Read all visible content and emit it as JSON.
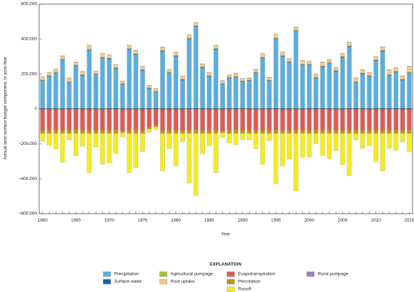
{
  "chart_data": {
    "type": "stacked-bar",
    "y_label": "Annual land-surface budget component, in acre-feet",
    "x_label": "Year",
    "legend_title": "EXPLANATION",
    "ylim": [
      -600000,
      600000
    ],
    "yticks": [
      {
        "value": -600000,
        "label": "−600,000"
      },
      {
        "value": -400000,
        "label": "−400,000"
      },
      {
        "value": -200000,
        "label": "−200,000"
      },
      0,
      {
        "value": 200000,
        "label": "200,000"
      },
      {
        "value": 400000,
        "label": "400,000"
      },
      {
        "value": 600000,
        "label": "600,000"
      }
    ],
    "categories": [
      "1960",
      null,
      null,
      null,
      null,
      "1965",
      null,
      null,
      null,
      null,
      "1970",
      null,
      null,
      null,
      null,
      "1975",
      null,
      null,
      null,
      null,
      "1980",
      null,
      null,
      null,
      null,
      "1985",
      null,
      null,
      null,
      null,
      "1990",
      null,
      null,
      null,
      null,
      "1995",
      null,
      null,
      null,
      null,
      "2000",
      null,
      null,
      null,
      null,
      "2005",
      null,
      null,
      null,
      null,
      "2010",
      null,
      null,
      null,
      null,
      "2015"
    ],
    "series": [
      {
        "name": "Precipitation",
        "color": "#5aaee0",
        "values": [
          160000,
          185000,
          205000,
          280000,
          150000,
          245000,
          190000,
          335000,
          195000,
          290000,
          285000,
          230000,
          140000,
          340000,
          310000,
          220000,
          115000,
          95000,
          330000,
          205000,
          300000,
          165000,
          400000,
          470000,
          235000,
          185000,
          340000,
          140000,
          175000,
          180000,
          155000,
          160000,
          205000,
          290000,
          160000,
          400000,
          300000,
          265000,
          445000,
          250000,
          250000,
          175000,
          240000,
          260000,
          215000,
          295000,
          355000,
          150000,
          200000,
          185000,
          275000,
          330000,
          190000,
          210000,
          165000,
          205000
        ]
      },
      {
        "name": "Surface water",
        "color": "#1f5fa8",
        "values": [
          3000,
          3000,
          3000,
          3000,
          3000,
          3000,
          3000,
          3000,
          3000,
          3000,
          3000,
          3000,
          3000,
          3000,
          3000,
          3000,
          3000,
          3000,
          3000,
          3000,
          3000,
          3000,
          3000,
          3000,
          3000,
          3000,
          3000,
          3000,
          3000,
          3000,
          3000,
          3000,
          3000,
          3000,
          3000,
          3000,
          3000,
          3000,
          3000,
          3000,
          3000,
          3000,
          3000,
          3000,
          3000,
          3000,
          3000,
          3000,
          3000,
          3000,
          3000,
          3000,
          3000,
          3000,
          3000,
          3000
        ]
      },
      {
        "name": "Agricultural pumpage",
        "color": "#a8c63a",
        "values": [
          3000,
          3000,
          3000,
          3000,
          3000,
          3000,
          3000,
          3000,
          3000,
          3000,
          3000,
          3000,
          3000,
          3000,
          3000,
          3000,
          3000,
          3000,
          3000,
          3000,
          3000,
          3000,
          3000,
          3000,
          3000,
          3000,
          3000,
          3000,
          3000,
          3000,
          3000,
          3000,
          3000,
          3000,
          3000,
          3000,
          3000,
          3000,
          3000,
          3000,
          3000,
          3000,
          3000,
          3000,
          3000,
          3000,
          3000,
          3000,
          3000,
          3000,
          3000,
          3000,
          3000,
          3000,
          3000,
          3000
        ]
      },
      {
        "name": "Root uptake",
        "color": "#f5c98a",
        "values": [
          18000,
          18000,
          18000,
          18000,
          21000,
          16000,
          18000,
          23000,
          16000,
          21000,
          18000,
          18000,
          13000,
          18000,
          18000,
          18000,
          13000,
          16000,
          18000,
          16000,
          18000,
          16000,
          18000,
          18000,
          16000,
          18000,
          18000,
          15000,
          13000,
          18000,
          13000,
          11000,
          16000,
          21000,
          15000,
          21000,
          21000,
          16000,
          18000,
          21000,
          18000,
          18000,
          21000,
          18000,
          16000,
          18000,
          20000,
          21000,
          18000,
          18000,
          18000,
          18000,
          28000,
          21000,
          18000,
          33000
        ]
      },
      {
        "name": "Rural pumpage",
        "color": "#9b7fb8",
        "values": [
          1000,
          1000,
          1000,
          1000,
          1000,
          1000,
          1000,
          1000,
          1000,
          1000,
          1000,
          1000,
          1000,
          1000,
          1000,
          1000,
          1000,
          1000,
          1000,
          1000,
          1000,
          1000,
          1000,
          1000,
          1000,
          1000,
          1000,
          1000,
          1000,
          1000,
          1000,
          1000,
          1000,
          1000,
          1000,
          1000,
          1000,
          1000,
          1000,
          1000,
          1000,
          1000,
          1000,
          1000,
          1000,
          1000,
          1000,
          1000,
          1000,
          1000,
          1000,
          1000,
          1000,
          1000,
          1000,
          1000
        ]
      },
      {
        "name": "Evapotranspiration",
        "color": "#e05a55",
        "values": [
          -120000,
          -120000,
          -120000,
          -120000,
          -120000,
          -120000,
          -120000,
          -120000,
          -120000,
          -120000,
          -120000,
          -120000,
          -125000,
          -120000,
          -120000,
          -120000,
          -105000,
          -92000,
          -120000,
          -120000,
          -120000,
          -120000,
          -120000,
          -120000,
          -120000,
          -120000,
          -120000,
          -126000,
          -120000,
          -120000,
          -120000,
          -120000,
          -120000,
          -120000,
          -120000,
          -120000,
          -120000,
          -120000,
          -120000,
          -120000,
          -120000,
          -120000,
          -120000,
          -120000,
          -120000,
          -120000,
          -120000,
          -120000,
          -120000,
          -120000,
          -120000,
          -120000,
          -120000,
          -120000,
          -120000,
          -120000
        ]
      },
      {
        "name": "Percolation",
        "color": "#c8901e",
        "values": [
          -20000,
          -20000,
          -20000,
          -20000,
          -20000,
          -20000,
          -20000,
          -20000,
          -20000,
          -20000,
          -20000,
          -20000,
          -10000,
          -20000,
          -20000,
          -20000,
          -10000,
          -10000,
          -20000,
          -20000,
          -20000,
          -20000,
          -20000,
          -20000,
          -20000,
          -20000,
          -20000,
          -10000,
          -20000,
          -20000,
          -20000,
          -20000,
          -20000,
          -20000,
          -20000,
          -20000,
          -20000,
          -20000,
          -20000,
          -20000,
          -20000,
          -20000,
          -20000,
          -20000,
          -20000,
          -20000,
          -20000,
          -20000,
          -20000,
          -20000,
          -20000,
          -20000,
          -20000,
          -20000,
          -20000,
          -20000
        ]
      },
      {
        "name": "Runoff",
        "color": "#f5ec1f",
        "values": [
          -45000,
          -70000,
          -90000,
          -165000,
          -38000,
          -128000,
          -75000,
          -225000,
          -78000,
          -178000,
          -170000,
          -115000,
          -25000,
          -225000,
          -195000,
          -105000,
          -20000,
          -16000,
          -215000,
          -88000,
          -185000,
          -48000,
          -285000,
          -355000,
          -118000,
          -70000,
          -225000,
          -26000,
          -55000,
          -65000,
          -35000,
          -38000,
          -88000,
          -178000,
          -42000,
          -288000,
          -188000,
          -148000,
          -330000,
          -138000,
          -135000,
          -60000,
          -128000,
          -145000,
          -98000,
          -180000,
          -242000,
          -38000,
          -85000,
          -70000,
          -160000,
          -215000,
          -85000,
          -98000,
          -50000,
          -105000
        ]
      }
    ]
  }
}
